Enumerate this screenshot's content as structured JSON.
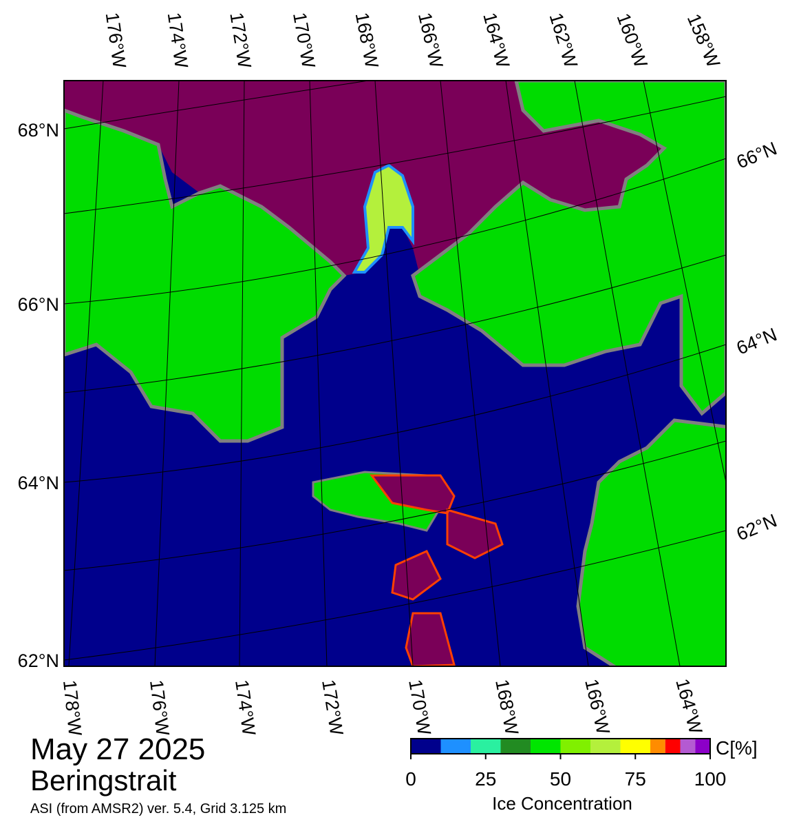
{
  "map": {
    "title": "May 27 2025",
    "region": "Beringstrait",
    "source": "ASI (from AMSR2) ver. 5.4,  Grid 3.125 km",
    "top_lon_labels": [
      "176°W",
      "174°W",
      "172°W",
      "170°W",
      "168°W",
      "166°W",
      "164°W",
      "162°W",
      "160°W",
      "158°W"
    ],
    "bottom_lon_labels": [
      "178°W",
      "176°W",
      "174°W",
      "172°W",
      "170°W",
      "168°W",
      "166°W",
      "164°W"
    ],
    "left_lat_labels": [
      "68°N",
      "66°N",
      "64°N",
      "62°N"
    ],
    "right_lat_labels": [
      "66°N",
      "64°N",
      "62°N"
    ]
  },
  "colorbar": {
    "label": "Ice Concentration",
    "unit_label": "C[%]",
    "lim": [
      0,
      100
    ],
    "ticks": [
      0,
      25,
      50,
      75,
      100
    ],
    "bounds": [
      0,
      10,
      20,
      30,
      40,
      50,
      60,
      70,
      80,
      85,
      90,
      95,
      100
    ],
    "colors": [
      "#00008c",
      "#1e90ff",
      "#2af0a0",
      "#228b22",
      "#00e600",
      "#80f000",
      "#b4f03c",
      "#ffff00",
      "#ff8c00",
      "#ff0000",
      "#b45ad2",
      "#8c00c8"
    ]
  }
}
